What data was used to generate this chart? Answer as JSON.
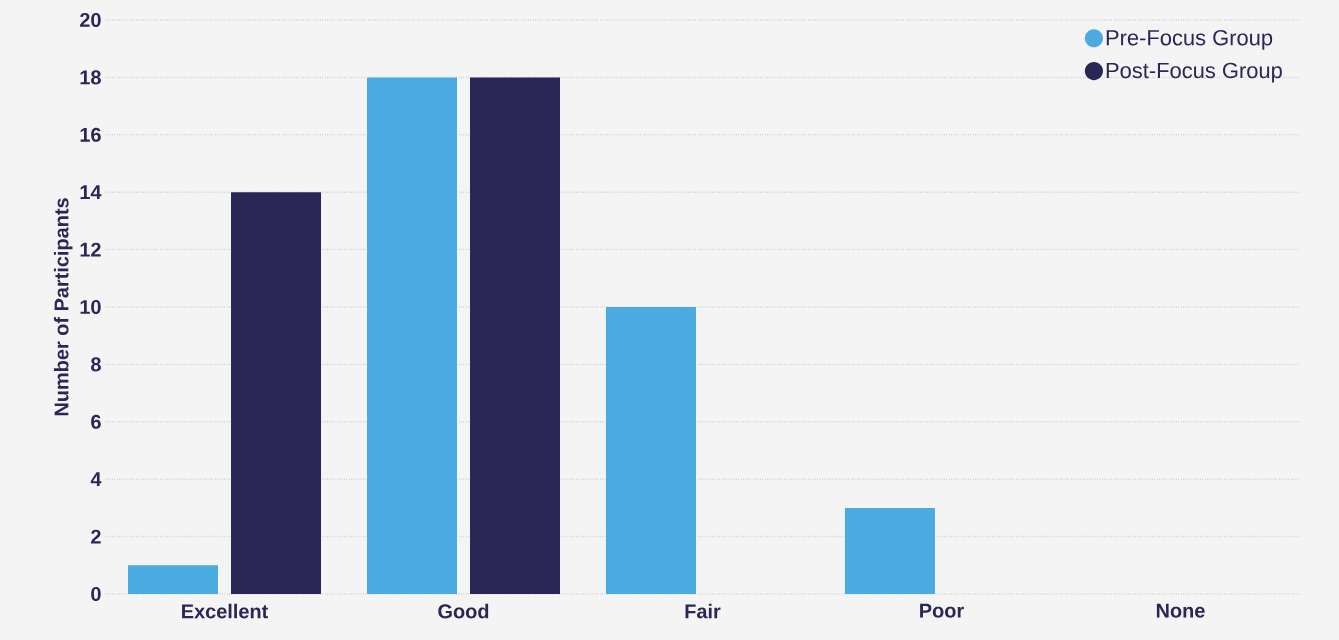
{
  "chart_data": {
    "type": "bar",
    "ylabel": "Number of Participants",
    "categories": [
      "Excellent",
      "Good",
      "Fair",
      "Poor",
      "None"
    ],
    "series": [
      {
        "name": "Pre-Focus Group",
        "color": "#4baae0",
        "values": [
          1,
          18,
          10,
          3,
          0
        ]
      },
      {
        "name": "Post-Focus Group",
        "color": "#2a2656",
        "values": [
          14,
          18,
          0,
          0,
          0
        ]
      }
    ],
    "ylim": [
      0,
      20
    ],
    "yticks": [
      0,
      2,
      4,
      6,
      8,
      10,
      12,
      14,
      16,
      18,
      20
    ],
    "grid": "y",
    "legend": "top right"
  }
}
